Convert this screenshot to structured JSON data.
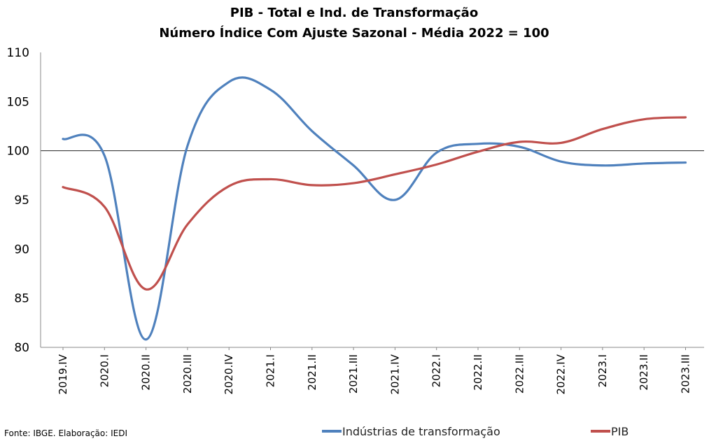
{
  "chart_data": {
    "type": "line",
    "title": "PIB - Total e Ind. de Transformação",
    "subtitle": "Número Índice Com Ajuste Sazonal - Média 2022 = 100",
    "categories": [
      "2019.IV",
      "2020.I",
      "2020.II",
      "2020.III",
      "2020.IV",
      "2021.I",
      "2021.II",
      "2021.III",
      "2021.IV",
      "2022.I",
      "2022.II",
      "2022.III",
      "2022.IV",
      "2023.I",
      "2023.II",
      "2023.III"
    ],
    "series": [
      {
        "name": "Indústrias de transformação",
        "color": "#4f81bd",
        "values": [
          101.2,
          99.5,
          80.8,
          100.5,
          107.0,
          106.2,
          102.0,
          98.5,
          95.0,
          99.8,
          100.7,
          100.4,
          98.9,
          98.5,
          98.7,
          98.8
        ]
      },
      {
        "name": "PIB",
        "color": "#c0504d",
        "values": [
          96.3,
          94.3,
          85.9,
          92.5,
          96.4,
          97.1,
          96.5,
          96.7,
          97.6,
          98.6,
          99.9,
          100.9,
          100.8,
          102.2,
          103.2,
          103.4
        ]
      }
    ],
    "ylim": [
      80,
      110
    ],
    "yticks": [
      80,
      85,
      90,
      95,
      100,
      105,
      110
    ],
    "reference_line": 100,
    "grid": false,
    "legend_position": "bottom"
  },
  "source": "Fonte: IBGE. Elaboração: IEDI"
}
